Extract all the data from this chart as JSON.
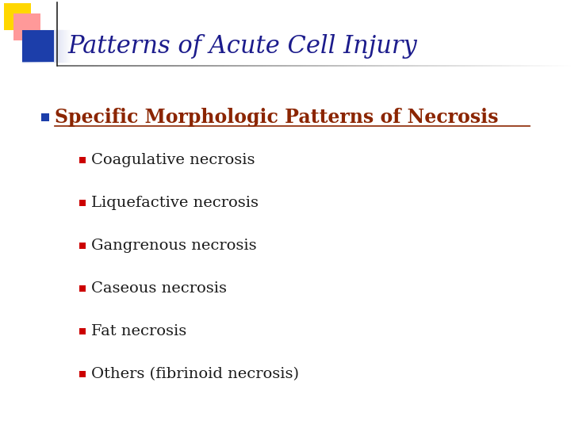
{
  "title": "Patterns of Acute Cell Injury",
  "title_color": "#1C1C8C",
  "title_fontsize": 22,
  "background_color": "#FFFFFF",
  "level1_bullet_text": "Specific Morphologic Patterns of Necrosis",
  "level1_bullet_color": "#8B2500",
  "level1_square_color": "#1C3EAA",
  "level2_items": [
    "Coagulative necrosis",
    "Liquefactive necrosis",
    "Gangrenous necrosis",
    "Caseous necrosis",
    "Fat necrosis",
    "Others (fibrinoid necrosis)"
  ],
  "level2_text_color": "#1A1A1A",
  "level2_square_color": "#CC0000",
  "level2_fontsize": 14,
  "level1_fontsize": 17,
  "corner_yellow": "#FFD700",
  "corner_pink": "#FF9999",
  "corner_blue": "#1C3EAA"
}
